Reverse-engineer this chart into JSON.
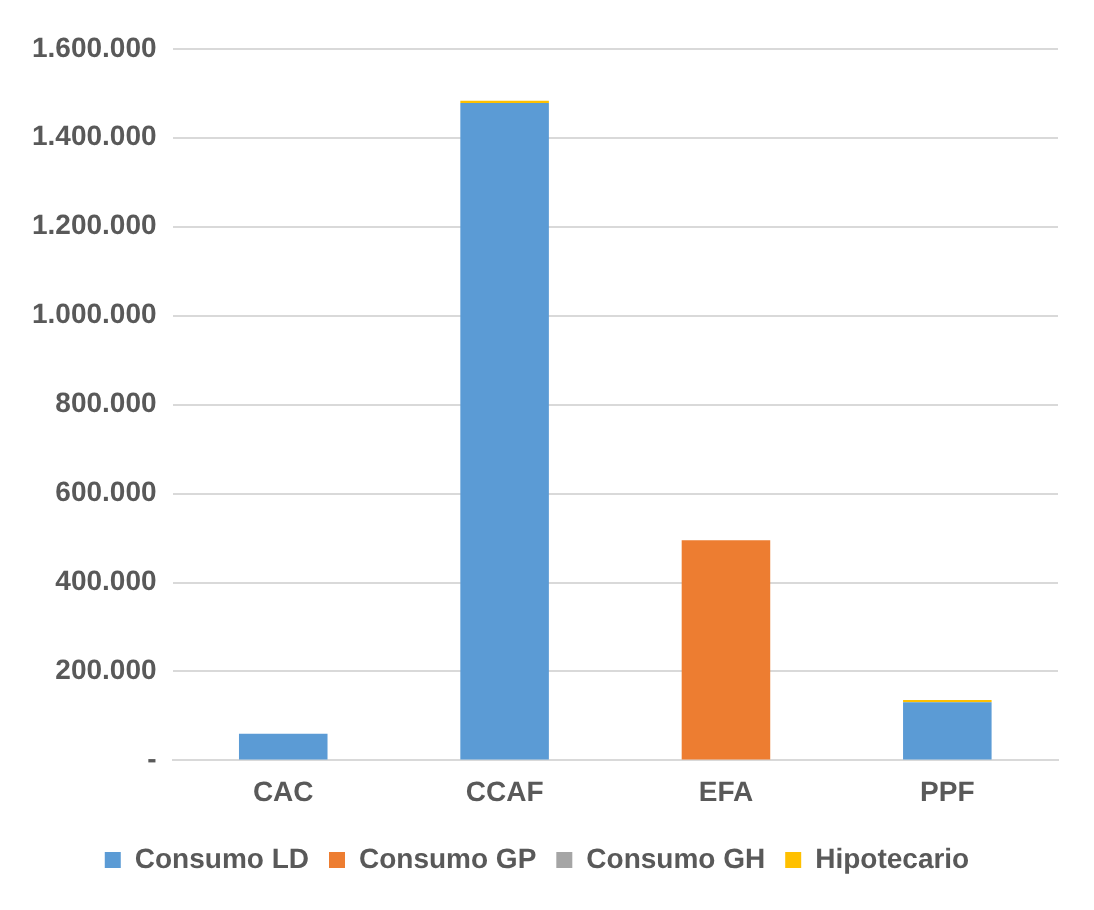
{
  "chart_data": {
    "type": "bar",
    "stacked": true,
    "categories": [
      "CAC",
      "CCAF",
      "EFA",
      "PPF"
    ],
    "series": [
      {
        "name": "Consumo LD",
        "color": "#5b9bd5",
        "values": [
          60000,
          1478000,
          0,
          131000
        ]
      },
      {
        "name": "Consumo GP",
        "color": "#ed7d31",
        "values": [
          0,
          0,
          495000,
          0
        ]
      },
      {
        "name": "Consumo GH",
        "color": "#a5a5a5",
        "values": [
          0,
          0,
          0,
          0
        ]
      },
      {
        "name": "Hipotecario",
        "color": "#ffc000",
        "values": [
          0,
          5000,
          0,
          5000
        ]
      }
    ],
    "ylim": [
      0,
      1600000
    ],
    "yticks": [
      {
        "value": 0,
        "label": "-"
      },
      {
        "value": 200000,
        "label": "200.000"
      },
      {
        "value": 400000,
        "label": "400.000"
      },
      {
        "value": 600000,
        "label": "600.000"
      },
      {
        "value": 800000,
        "label": "800.000"
      },
      {
        "value": 1000000,
        "label": "1.000.000"
      },
      {
        "value": 1200000,
        "label": "1.200.000"
      },
      {
        "value": 1400000,
        "label": "1.400.000"
      },
      {
        "value": 1600000,
        "label": "1.600.000"
      }
    ],
    "grid": "y",
    "legend": "bottom"
  }
}
